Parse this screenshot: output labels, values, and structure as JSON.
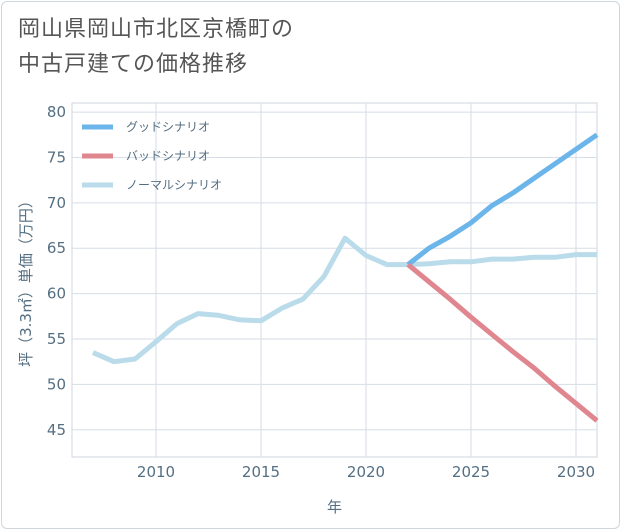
{
  "title_line1": "岡山県岡山市北区京橋町の",
  "title_line2": "中古戸建ての価格推移",
  "chart_data": {
    "type": "line",
    "title": "岡山県岡山市北区京橋町の中古戸建ての価格推移",
    "xlabel": "年",
    "ylabel": "坪（3.3㎡）単価（万円）",
    "xlim": [
      2006,
      2031
    ],
    "ylim": [
      42,
      81
    ],
    "xticks": [
      2010,
      2015,
      2020,
      2025,
      2030
    ],
    "yticks": [
      45,
      50,
      55,
      60,
      65,
      70,
      75,
      80
    ],
    "grid": true,
    "legend_position": "top-left",
    "series": [
      {
        "name": "グッドシナリオ",
        "color": "#6bb5ea",
        "x": [
          2022,
          2023,
          2024,
          2025,
          2026,
          2027,
          2028,
          2029,
          2030,
          2031
        ],
        "y": [
          63.2,
          65.0,
          66.3,
          67.8,
          69.7,
          71.1,
          72.7,
          74.3,
          75.9,
          77.5
        ]
      },
      {
        "name": "バッドシナリオ",
        "color": "#e0868f",
        "x": [
          2022,
          2023,
          2024,
          2025,
          2026,
          2027,
          2028,
          2029,
          2030,
          2031
        ],
        "y": [
          63.2,
          61.3,
          59.4,
          57.4,
          55.5,
          53.6,
          51.8,
          49.8,
          47.9,
          46.0
        ]
      },
      {
        "name": "ノーマルシナリオ",
        "color": "#b9dbea",
        "x": [
          2007,
          2008,
          2009,
          2010,
          2011,
          2012,
          2013,
          2014,
          2015,
          2016,
          2017,
          2018,
          2019,
          2020,
          2021,
          2022,
          2023,
          2024,
          2025,
          2026,
          2027,
          2028,
          2029,
          2030,
          2031
        ],
        "y": [
          53.5,
          52.5,
          52.8,
          54.7,
          56.7,
          57.8,
          57.6,
          57.1,
          57.0,
          58.4,
          59.4,
          61.9,
          66.1,
          64.2,
          63.2,
          63.2,
          63.3,
          63.5,
          63.5,
          63.8,
          63.8,
          64.0,
          64.0,
          64.3,
          64.3
        ]
      }
    ]
  }
}
